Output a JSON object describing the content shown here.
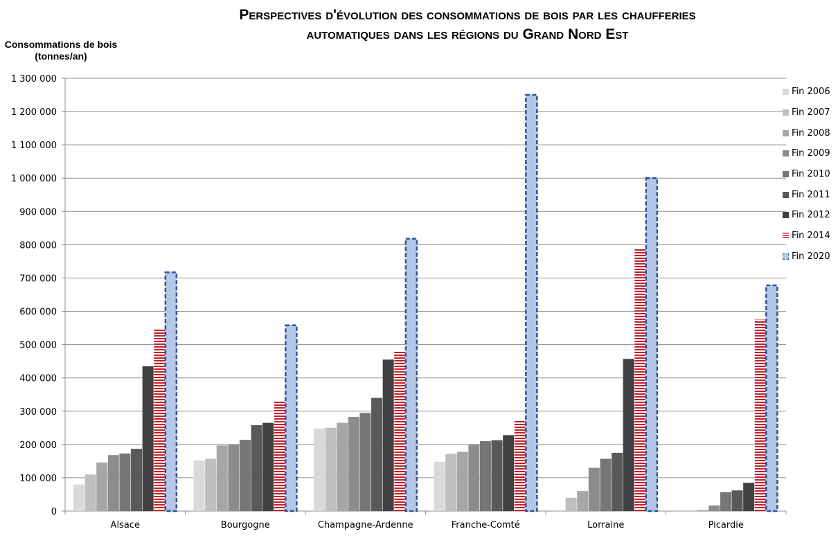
{
  "chart_data": {
    "type": "bar",
    "title_lines": [
      "Perspectives d'évolution des consommations de bois par les chaufferies",
      "automatiques dans les régions du Grand Nord Est"
    ],
    "ylabel_lines": [
      "Consommations de bois",
      "(tonnes/an)"
    ],
    "xlabel": "",
    "ylim": [
      0,
      1300000
    ],
    "yticks": [
      0,
      100000,
      200000,
      300000,
      400000,
      500000,
      600000,
      700000,
      800000,
      900000,
      1000000,
      1100000,
      1200000,
      1300000
    ],
    "ytick_labels": [
      "0",
      "100 000",
      "200 000",
      "300 000",
      "400 000",
      "500 000",
      "600 000",
      "700 000",
      "800 000",
      "900 000",
      "1 000 000",
      "1 100 000",
      "1 200 000",
      "1 300 000"
    ],
    "grid": true,
    "legend_position": "right",
    "categories": [
      "Alsace",
      "Bourgogne",
      "Champagne-Ardenne",
      "Franche-Comté",
      "Lorraine",
      "Picardie"
    ],
    "series": [
      {
        "name": "Fin 2006",
        "color": "#d9d9d9",
        "values": [
          80000,
          152000,
          248000,
          148000,
          0,
          0
        ]
      },
      {
        "name": "Fin 2007",
        "color": "#bfbfbf",
        "values": [
          110000,
          157000,
          250000,
          172000,
          40000,
          0
        ]
      },
      {
        "name": "Fin 2008",
        "color": "#a6a6a6",
        "values": [
          146000,
          197000,
          265000,
          178000,
          60000,
          3000
        ]
      },
      {
        "name": "Fin 2009",
        "color": "#8c8c8c",
        "values": [
          168000,
          200000,
          283000,
          200000,
          130000,
          17000
        ]
      },
      {
        "name": "Fin 2010",
        "color": "#767676",
        "values": [
          173000,
          214000,
          295000,
          210000,
          157000,
          57000
        ]
      },
      {
        "name": "Fin 2011",
        "color": "#595959",
        "values": [
          187000,
          258000,
          340000,
          213000,
          175000,
          62000
        ]
      },
      {
        "name": "Fin 2012",
        "color": "#404040",
        "values": [
          435000,
          265000,
          455000,
          228000,
          457000,
          85000
        ]
      },
      {
        "name": "Fin 2014",
        "color": "#c0202b",
        "values": [
          546000,
          330000,
          482000,
          272000,
          788000,
          575000
        ]
      },
      {
        "name": "Fin 2020",
        "color": "#b4c7e7",
        "values": [
          717000,
          558000,
          818000,
          1250000,
          1000000,
          678000
        ]
      }
    ]
  }
}
